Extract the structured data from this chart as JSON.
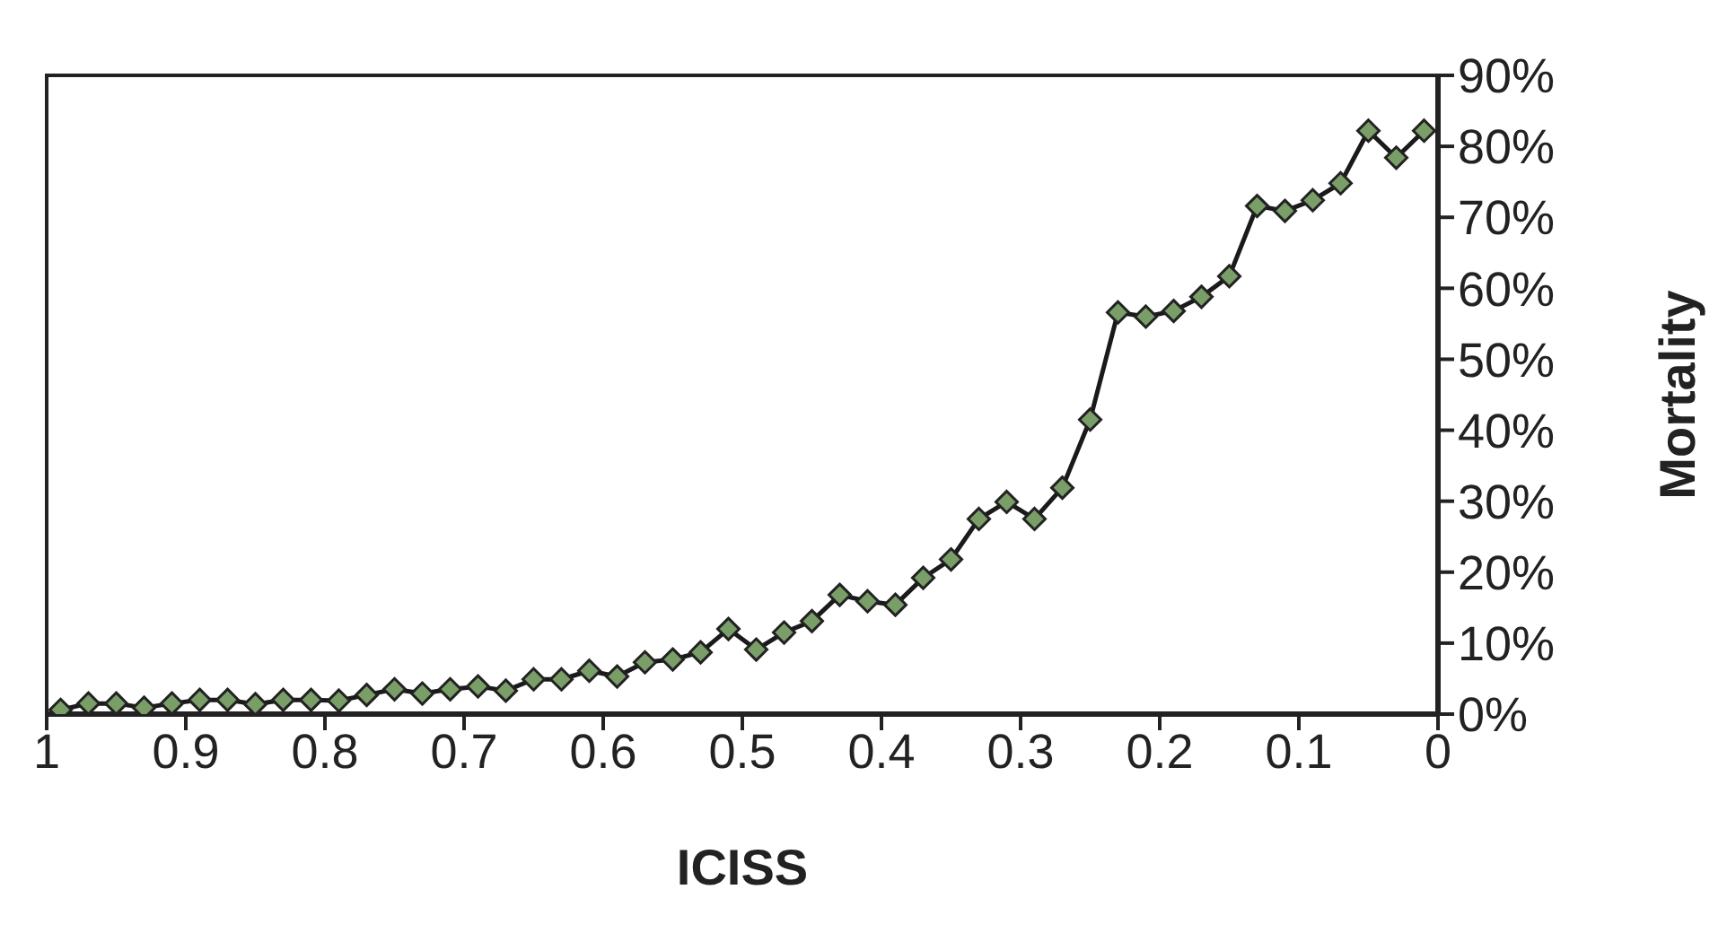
{
  "chart_data": {
    "type": "line",
    "xlabel": "ICISS",
    "ylabel": "Mortality",
    "x": [
      0.99,
      0.97,
      0.95,
      0.93,
      0.91,
      0.89,
      0.87,
      0.85,
      0.83,
      0.81,
      0.79,
      0.77,
      0.75,
      0.73,
      0.71,
      0.69,
      0.67,
      0.65,
      0.63,
      0.61,
      0.59,
      0.57,
      0.55,
      0.53,
      0.51,
      0.49,
      0.47,
      0.45,
      0.43,
      0.41,
      0.39,
      0.37,
      0.35,
      0.33,
      0.31,
      0.29,
      0.27,
      0.25,
      0.23,
      0.21,
      0.19,
      0.17,
      0.15,
      0.13,
      0.11,
      0.09,
      0.07,
      0.05,
      0.03,
      0.01
    ],
    "series": [
      {
        "color": "#7a9e68",
        "values": [
          0.6,
          1.5,
          1.5,
          0.9,
          1.5,
          2.0,
          2.0,
          1.4,
          2.0,
          2.0,
          1.9,
          2.7,
          3.5,
          2.9,
          3.5,
          3.9,
          3.3,
          4.9,
          4.9,
          6.1,
          5.3,
          7.3,
          7.7,
          8.7,
          12.0,
          9.1,
          11.5,
          13.1,
          16.8,
          15.9,
          15.4,
          19.2,
          21.8,
          27.5,
          29.9,
          27.5,
          31.9,
          41.5,
          56.6,
          56.0,
          56.8,
          58.8,
          61.7,
          71.6,
          70.9,
          72.4,
          74.8,
          82.2,
          78.4,
          82.2
        ]
      }
    ],
    "xlim": [
      1,
      0
    ],
    "xticks": [
      1,
      0.9,
      0.8,
      0.7,
      0.6,
      0.5,
      0.4,
      0.3,
      0.2,
      0.1,
      0
    ],
    "ylim": [
      0,
      90
    ],
    "yticks": [
      {
        "value": 0,
        "label": "0%"
      },
      {
        "value": 10,
        "label": "10%"
      },
      {
        "value": 20,
        "label": "20%"
      },
      {
        "value": 30,
        "label": "30%"
      },
      {
        "value": 40,
        "label": "40%"
      },
      {
        "value": 50,
        "label": "50%"
      },
      {
        "value": 60,
        "label": "60%"
      },
      {
        "value": 70,
        "label": "70%"
      },
      {
        "value": 80,
        "label": "80%"
      },
      {
        "value": 90,
        "label": "90%"
      }
    ],
    "grid": false,
    "legend": false,
    "marker": "diamond",
    "line_style": "solid"
  }
}
